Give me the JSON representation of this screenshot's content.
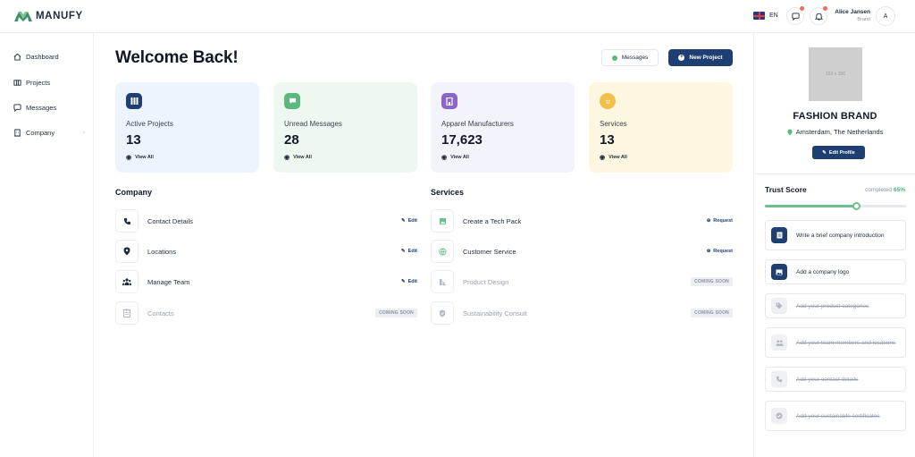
{
  "header": {
    "brand": "MANUFY",
    "language": "EN",
    "user_name": "Alice Jansen",
    "user_role": "Brand",
    "avatar_initial": "A"
  },
  "sidebar": {
    "items": [
      {
        "label": "Dashboard",
        "icon": "home-icon"
      },
      {
        "label": "Projects",
        "icon": "board-icon"
      },
      {
        "label": "Messages",
        "icon": "chat-icon"
      },
      {
        "label": "Company",
        "icon": "building-icon"
      }
    ]
  },
  "main": {
    "title": "Welcome Back!",
    "messages_button": "Messages",
    "new_project_button": "New Project",
    "stats": [
      {
        "label": "Active Projects",
        "value": "13",
        "link": "View All",
        "bg": "#eef4fd",
        "icon_bg": "#1f3f73"
      },
      {
        "label": "Unread Messages",
        "value": "28",
        "link": "View All",
        "bg": "#eef8f1",
        "icon_bg": "#5cb87f"
      },
      {
        "label": "Apparel Manufacturers",
        "value": "17,623",
        "link": "View All",
        "bg": "#f3f3fb",
        "icon_bg": "#8b65c9"
      },
      {
        "label": "Services",
        "value": "13",
        "link": "View All",
        "bg": "#fdf6e0",
        "icon_bg": "#f2c04a"
      }
    ],
    "company": {
      "title": "Company",
      "rows": [
        {
          "label": "Contact Details",
          "action": "Edit"
        },
        {
          "label": "Locations",
          "action": "Edit"
        },
        {
          "label": "Manage Team",
          "action": "Edit"
        },
        {
          "label": "Contacts",
          "badge": "COMING SOON"
        }
      ]
    },
    "services": {
      "title": "Services",
      "rows": [
        {
          "label": "Create a Tech Pack",
          "action": "Request"
        },
        {
          "label": "Customer Service",
          "action": "Request"
        },
        {
          "label": "Product Design",
          "badge": "COMING SOON"
        },
        {
          "label": "Sustainability Consult",
          "badge": "COMING SOON"
        }
      ]
    }
  },
  "profile": {
    "image_placeholder": "150 x 150",
    "brand_name": "FASHION BRAND",
    "location": "Amsterdam, The Netherlands",
    "edit_button": "Edit Profile",
    "trust_title": "Trust Score",
    "completed_label": "completed",
    "completed_value": "65%",
    "progress": 0.65,
    "tasks": [
      {
        "text": "Write a brief company introduction",
        "done": false
      },
      {
        "text": "Add a company logo",
        "done": false
      },
      {
        "text": "Add your product categories",
        "done": true
      },
      {
        "text": "Add your team members and locations",
        "done": true
      },
      {
        "text": "Add your contact details",
        "done": true
      },
      {
        "text": "Add your sustainable certificates",
        "done": true
      }
    ]
  },
  "colors": {
    "primary": "#1f3f73",
    "accent_green": "#5cb87f",
    "notification": "#f26b5b"
  }
}
